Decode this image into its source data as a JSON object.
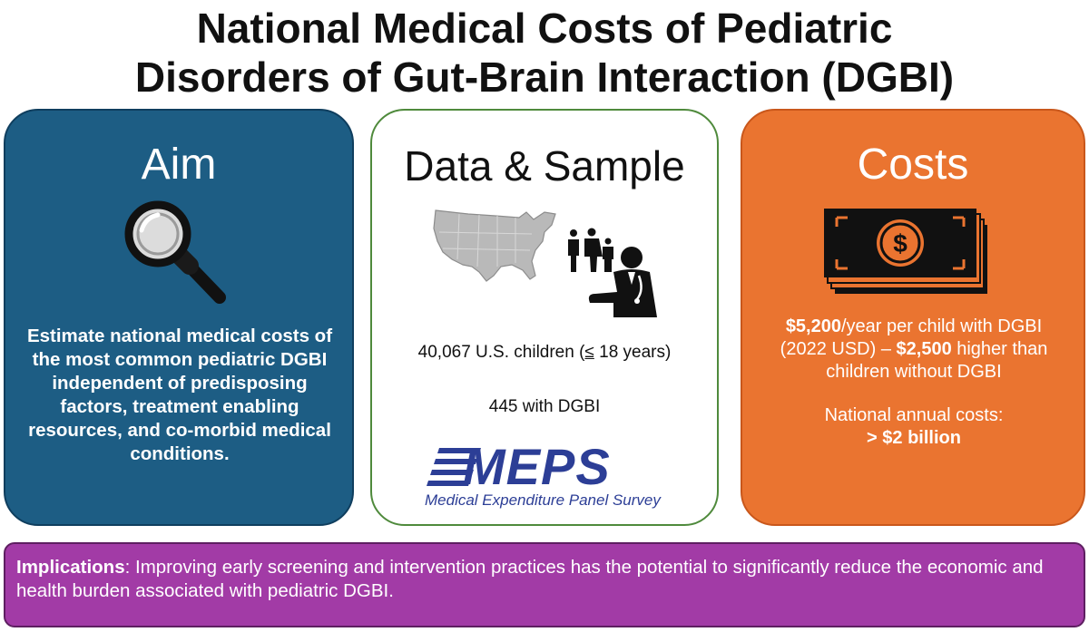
{
  "title": {
    "line1": "National Medical Costs of Pediatric",
    "line2": "Disorders of Gut-Brain Interaction (DGBI)"
  },
  "aim": {
    "heading": "Aim",
    "icon": "magnifying-glass-icon",
    "text": "Estimate national medical costs of the most common pediatric DGBI independent of predisposing factors, treatment enabling resources, and co-morbid medical conditions.",
    "color": "#1d5d84"
  },
  "data_sample": {
    "heading": "Data & Sample",
    "icons": [
      "us-map-icon",
      "family-icon",
      "doctor-icon"
    ],
    "children_count": "40,067 U.S. children (",
    "age_symbol": "≤",
    "age_rest": " 18 years)",
    "dgbi_count": "445 with DGBI",
    "logo_text": "MEPS",
    "logo_subtitle": "Medical Expenditure Panel Survey",
    "border_color": "#4f8a3c"
  },
  "costs": {
    "heading": "Costs",
    "icon": "dollar-bill-icon",
    "per_child_amount": "$5,200",
    "per_child_rest": "/year per child with DGBI",
    "usd_year": "(2022 USD) – ",
    "difference_amount": "$2,500",
    "difference_rest": " higher than",
    "difference_line2": "children without DGBI",
    "national_label": "National annual costs:",
    "national_value": "> $2 billion",
    "color": "#ea7430"
  },
  "implications": {
    "label": "Implications",
    "text": ": Improving early screening and intervention practices has the potential to significantly reduce the economic and health burden associated with pediatric DGBI.",
    "color": "#a23ba6"
  }
}
